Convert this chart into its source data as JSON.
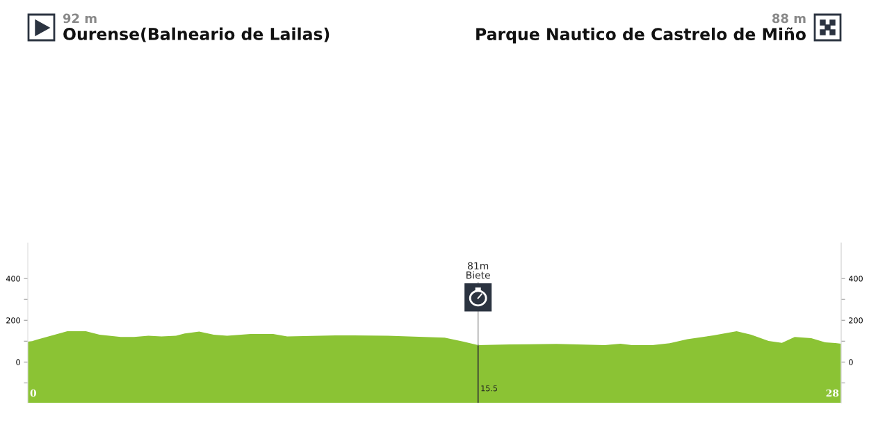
{
  "chart_data": {
    "type": "area",
    "x": [
      0,
      0.15,
      0.3,
      1.36,
      2.0,
      2.47,
      3.2,
      3.66,
      4.15,
      4.6,
      5.1,
      5.4,
      5.9,
      6.4,
      6.86,
      7.66,
      8.45,
      8.93,
      10.6,
      12.4,
      14.35,
      15.0,
      15.5,
      16.6,
      18.2,
      19.86,
      20.4,
      20.8,
      21.5,
      22.1,
      22.7,
      23.6,
      24.4,
      24.9,
      25.5,
      25.96,
      26.4,
      26.97,
      27.45,
      27.8,
      28
    ],
    "series": [
      {
        "color": "#8bc334",
        "values": [
          98,
          100,
          107,
          148,
          148,
          131,
          120,
          120,
          126,
          123,
          126,
          137,
          146,
          131,
          126,
          134,
          134,
          123,
          128,
          126,
          117,
          98,
          81,
          84,
          87,
          81,
          88,
          81,
          81,
          90,
          109,
          128,
          148,
          131,
          101,
          92,
          120,
          114,
          94,
          91,
          88
        ]
      }
    ],
    "xlim": [
      0,
      28
    ],
    "xticks": [
      0,
      28
    ],
    "ylim": [
      -195,
      570
    ],
    "yticks": [
      {
        "value": -100,
        "label": null
      },
      0,
      {
        "value": 100,
        "label": null
      },
      200,
      {
        "value": 300,
        "label": null
      },
      400
    ],
    "y2lim": [
      -195,
      570
    ],
    "y2ticks": [
      {
        "value": -100,
        "label": null
      },
      0,
      {
        "value": 100,
        "label": null
      },
      200,
      {
        "value": 300,
        "label": null
      },
      400
    ],
    "bands": [
      {
        "axis": "y",
        "from": -195,
        "to": 0,
        "color": "#8bc334"
      }
    ],
    "ref_lines": [
      {
        "axis": "x",
        "value": 15.5,
        "label": "15.5",
        "color": "#333333"
      }
    ],
    "annotations": [
      {
        "text": "81m\nBiete",
        "x": 15.5,
        "y": 81
      },
      "92 m",
      "Ourense(Balneario de Lailas)",
      "88 m",
      "Parque Nautico de Castrelo de Miño"
    ],
    "grid": false,
    "legend": false
  }
}
